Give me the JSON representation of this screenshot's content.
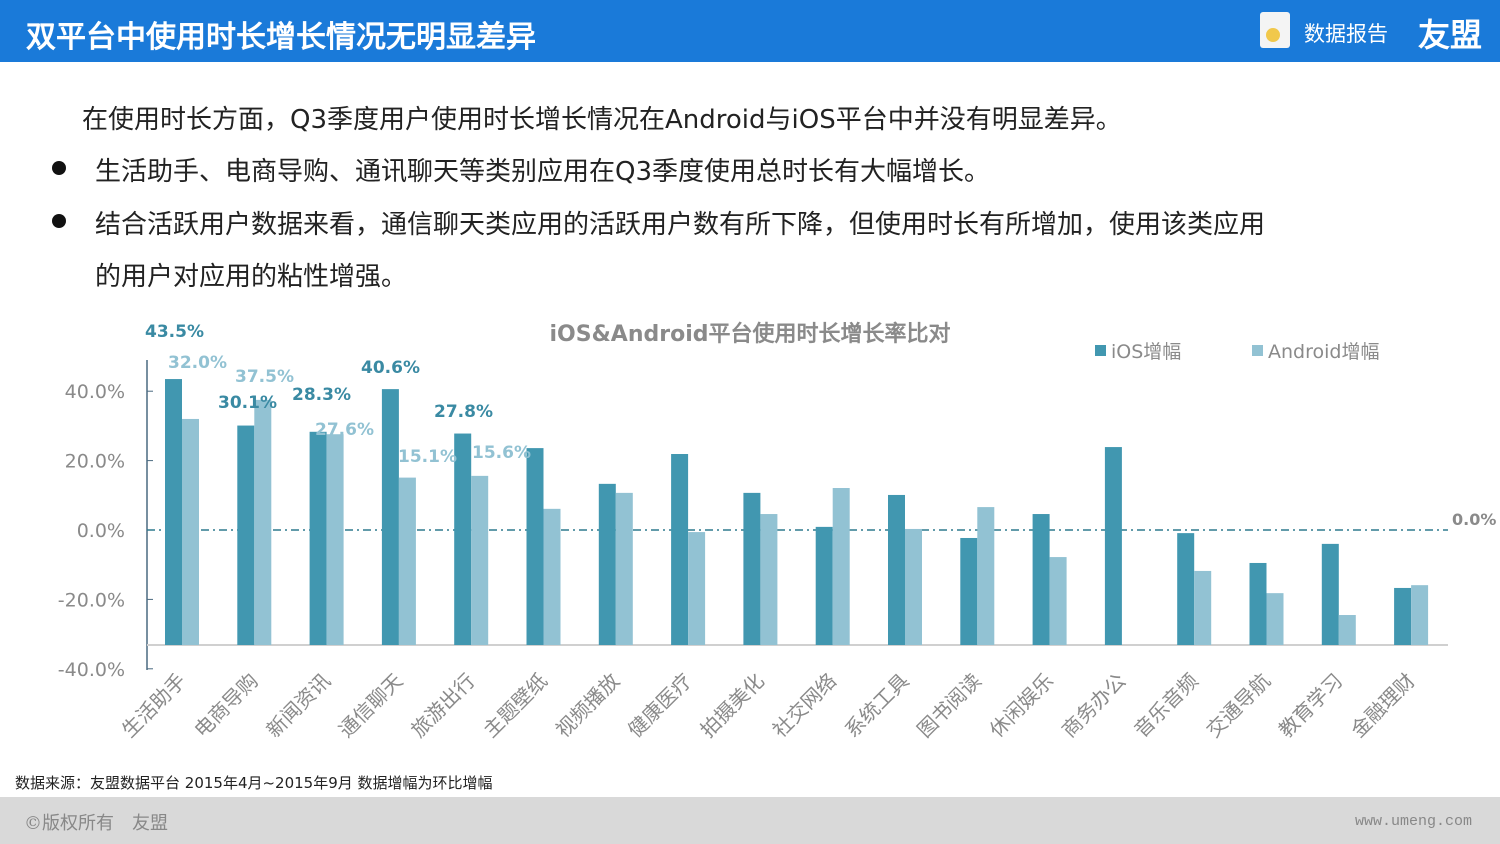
{
  "header": {
    "title": "双平台中使用时长增长情况无明显差异",
    "report_label": "数据报告",
    "logo": "友盟"
  },
  "body": {
    "intro": "在使用时长方面，Q3季度用户使用时长增长情况在Android与iOS平台中并没有明显差异。",
    "bullets": [
      "生活助手、电商导购、通讯聊天等类别应用在Q3季度使用总时长有大幅增长。",
      "结合活跃用户数据来看，通信聊天类应用的活跃用户数有所下降，但使用时长有所增加，使用该类应用",
      "的用户对应用的粘性增强。"
    ]
  },
  "chart_data": {
    "type": "bar",
    "title": "iOS&Android平台使用时长增长率比对",
    "categories": [
      "生活助手",
      "电商导购",
      "新闻资讯",
      "通信聊天",
      "旅游出行",
      "主题壁纸",
      "视频播放",
      "健康医疗",
      "拍摄美化",
      "社交网络",
      "系统工具",
      "图书阅读",
      "休闲娱乐",
      "商务办公",
      "音乐音频",
      "交通导航",
      "教育学习",
      "金融理财"
    ],
    "series": [
      {
        "name": "iOS增幅",
        "color": "#4197b0",
        "values": [
          43.5,
          30.1,
          28.3,
          40.6,
          27.8,
          23.6,
          13.3,
          21.9,
          10.7,
          0.9,
          10.1,
          -2.3,
          4.6,
          23.9,
          -0.9,
          -9.5,
          -4.0,
          -16.7
        ]
      },
      {
        "name": "Android增幅",
        "color": "#92c2d3",
        "values": [
          32.0,
          37.5,
          27.6,
          15.1,
          15.6,
          6.1,
          10.7,
          -0.6,
          4.6,
          12.1,
          0.3,
          6.6,
          -7.8,
          null,
          -11.8,
          -18.2,
          -24.5,
          -15.9
        ]
      }
    ],
    "data_labels": {
      "iOS": [
        "43.5%",
        "30.1%",
        "28.3%",
        "40.6%",
        "27.8%"
      ],
      "Android": [
        "32.0%",
        "37.5%",
        "27.6%",
        "15.1%",
        "15.6%"
      ]
    },
    "y_ticks": [
      "40.0%",
      "20.0%",
      "0.0%",
      "-20.0%",
      "-40.0%"
    ],
    "ylim": [
      -40,
      40
    ],
    "reference_line": {
      "value": 0,
      "label": "0.0%"
    },
    "legend": "top-right",
    "grid": false
  },
  "footer": {
    "source": "数据来源：友盟数据平台 2015年4月~2015年9月 数据增幅为环比增幅",
    "copyright": "©版权所有　友盟",
    "url": "www.umeng.com"
  }
}
